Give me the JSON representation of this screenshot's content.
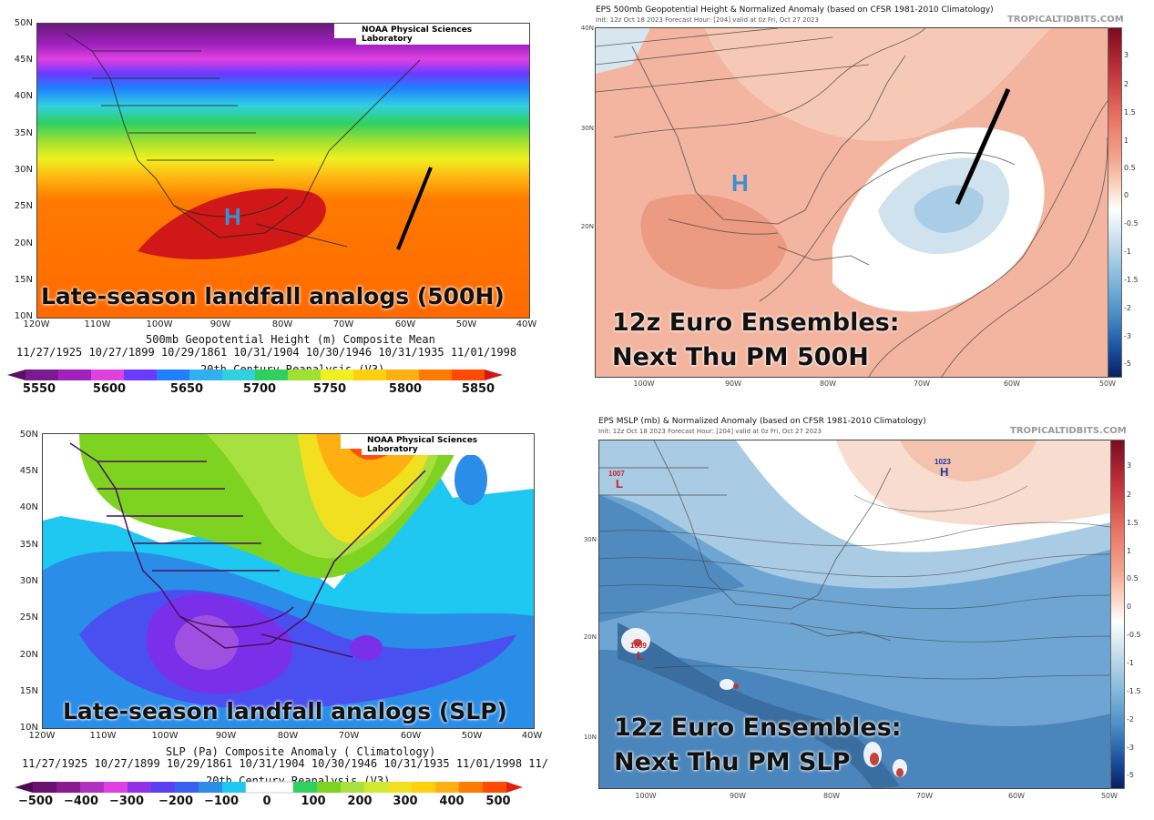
{
  "panel_tl": {
    "y_labels": [
      "50N",
      "45N",
      "40N",
      "35N",
      "30N",
      "25N",
      "20N",
      "15N",
      "10N"
    ],
    "x_labels": [
      "120W",
      "110W",
      "100W",
      "90W",
      "80W",
      "70W",
      "60W",
      "50W",
      "40W"
    ],
    "credit": "NOAA Physical Sciences Laboratory",
    "overlay": "Late-season landfall analogs (500H)",
    "high_marker": "H",
    "caption1": "500mb Geopotential Height (m) Composite Mean",
    "caption2": "11/27/1925 10/27/1899 10/29/1861 10/31/1904 10/30/1946 10/31/1935 11/01/1998",
    "caption3": "20th Century Reanalysis (V3)",
    "colorbar": [
      "5550",
      "5600",
      "5650",
      "5700",
      "5750",
      "5800",
      "5850"
    ]
  },
  "panel_bl": {
    "y_labels": [
      "50N",
      "45N",
      "40N",
      "35N",
      "30N",
      "25N",
      "20N",
      "15N",
      "10N"
    ],
    "x_labels": [
      "120W",
      "110W",
      "100W",
      "90W",
      "80W",
      "70W",
      "60W",
      "50W",
      "40W"
    ],
    "credit": "NOAA Physical Sciences Laboratory",
    "overlay": "Late-season landfall analogs (SLP)",
    "caption1": "SLP (Pa) Composite Anomaly ( Climatology)",
    "caption2": "11/27/1925 10/27/1899 10/29/1861 10/31/1904 10/30/1946 10/31/1935 11/01/1998 11/",
    "caption3": "20th Century Reanalysis (V3)",
    "colorbar": [
      "−500",
      "−400",
      "−300",
      "−200",
      "−100",
      "0",
      "100",
      "200",
      "300",
      "400",
      "500"
    ]
  },
  "panel_tr": {
    "header": "EPS 500mb Geopotential Height & Normalized Anomaly (based on CFSR 1981-2010 Climatology)",
    "subheader": "Init: 12z Oct 18 2023   Forecast Hour: [204]   valid at 0z Fri, Oct 27 2023",
    "brand": "TROPICALTIDBITS.COM",
    "high_marker": "H",
    "overlay_line1": "12z Euro Ensembles:",
    "overlay_line2": "Next Thu PM 500H",
    "y_labels": [
      "40N",
      "30N",
      "20N"
    ],
    "x_labels": [
      "100W",
      "90W",
      "80W",
      "70W",
      "60W",
      "50W"
    ],
    "vbar": [
      "3",
      "2",
      "1.5",
      "1",
      "0.5",
      "0",
      "-0.5",
      "-1",
      "-1.5",
      "-2",
      "-3",
      "-5"
    ]
  },
  "panel_br": {
    "header": "EPS MSLP (mb) & Normalized Anomaly (based on CFSR 1981-2010 Climatology)",
    "subheader": "Init: 12z Oct 18 2023   Forecast Hour: [204]   valid at 0z Fri, Oct 27 2023",
    "brand": "TROPICALTIDBITS.COM",
    "high_value": "1023",
    "high_marker": "H",
    "low1_value": "1007",
    "low1_marker": "L",
    "low2_value": "1009",
    "low2_marker": "L",
    "overlay_line1": "12z Euro Ensembles:",
    "overlay_line2": "Next Thu PM SLP",
    "y_labels": [
      "30N",
      "20N",
      "10N"
    ],
    "x_labels": [
      "100W",
      "90W",
      "80W",
      "70W",
      "60W",
      "50W"
    ],
    "vbar": [
      "3",
      "2",
      "1.5",
      "1",
      "0.5",
      "0",
      "-0.5",
      "-1",
      "-1.5",
      "-2",
      "-3",
      "-5"
    ]
  },
  "colors": {
    "high_blue": "#3a8fd6",
    "low_red": "#cc2222",
    "track_line": "#000000"
  }
}
